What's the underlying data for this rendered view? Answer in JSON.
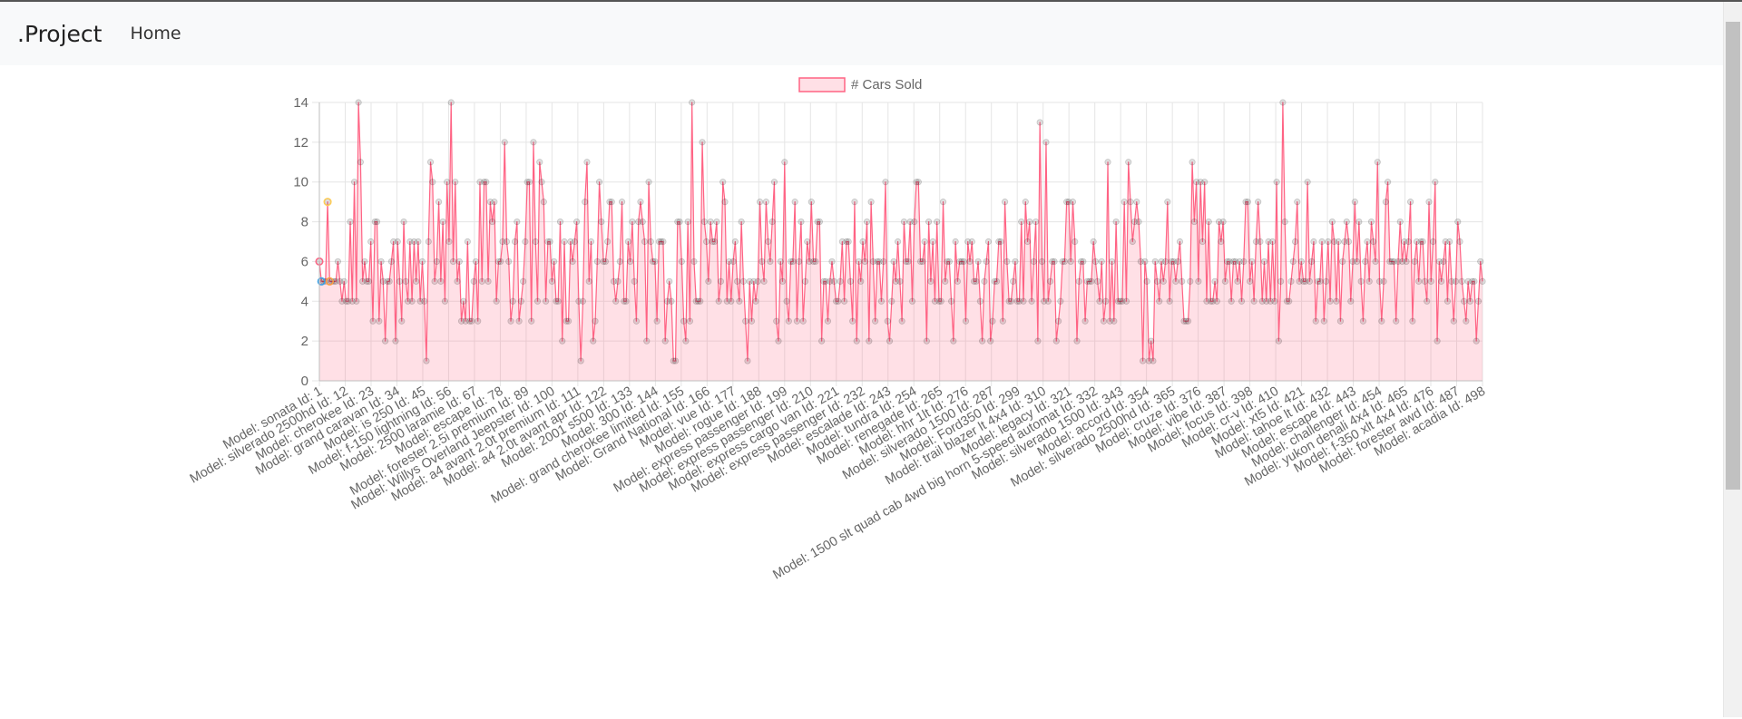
{
  "navbar": {
    "brand": ".Project",
    "links": [
      "Home"
    ]
  },
  "colors": {
    "line": "#ff6384",
    "fill": "rgba(255,99,132,0.2)",
    "grid": "#e5e5e5",
    "text": "#666666",
    "point": "rgba(0,0,0,0.12)",
    "highlightRed": "#ff6384",
    "highlightYellow": "#ffcd56",
    "highlightBlue": "#36a2eb",
    "highlightOrange": "#ff9f40"
  },
  "chart_data": {
    "type": "line",
    "legend": "# Cars Sold",
    "legend_position": "top",
    "ylim": [
      0,
      14
    ],
    "ytick_step": 2,
    "grid": true,
    "x_labels_shown": [
      "Model: sonata Id: 1",
      "Model: silverado 2500hd Id: 12",
      "Model: cherokee Id: 23",
      "Model: grand caravan Id: 34",
      "Model: is 250 Id: 45",
      "Model: f-150 lightning Id: 56",
      "Model: 2500 laramie Id: 67",
      "Model: escape Id: 78",
      "Model: forester 2.5i premium Id: 89",
      "Model: Willys Overland Jeepster Id: 100",
      "Model: a4 avant 2.0t premium Id: 111",
      "Model: a4 2.0t avant apr Id: 122",
      "Model: 2001 s500 Id: 133",
      "Model: 300 Id: 144",
      "Model: grand cherokee limited Id: 155",
      "Model: Grand National Id: 166",
      "Model: vue Id: 177",
      "Model: rogue Id: 188",
      "Model: express passenger Id: 199",
      "Model: express passenger Id: 210",
      "Model: express cargo van Id: 221",
      "Model: express passenger Id: 232",
      "Model: escalade Id: 243",
      "Model: tundra Id: 254",
      "Model: renegade Id: 265",
      "Model: hhr 1lt Id: 276",
      "Model: silverado 1500 Id: 287",
      "Model: Ford350 Id: 299",
      "Model: trail blazer lt 4x4 Id: 310",
      "Model: legacy Id: 321",
      "Model: 1500 slt quad cab 4wd big horn 5-speed automat Id: 332",
      "Model: silverado 1500 Id: 343",
      "Model: accord Id: 354",
      "Model: silverado 2500hd Id: 365",
      "Model: cruze Id: 376",
      "Model: vibe Id: 387",
      "Model: focus Id: 398",
      "Model: cr-v Id: 410",
      "Model: xt5 Id: 421",
      "Model: tahoe lt Id: 432",
      "Model: escape Id: 443",
      "Model: challenger Id: 454",
      "Model: yukon denali 4x4 Id: 465",
      "Model: f-350 xlt 4x4 Id: 476",
      "Model: forester awd Id: 487",
      "Model: acadia Id: 498"
    ],
    "values": [
      6,
      5,
      5,
      5,
      9,
      5,
      5,
      5,
      5,
      6,
      5,
      4,
      5,
      4,
      4,
      8,
      4,
      10,
      4,
      14,
      11,
      5,
      6,
      5,
      5,
      7,
      3,
      8,
      8,
      3,
      6,
      5,
      2,
      5,
      5,
      6,
      7,
      2,
      7,
      5,
      3,
      8,
      5,
      4,
      7,
      4,
      7,
      5,
      7,
      4,
      6,
      4,
      1,
      7,
      11,
      10,
      5,
      6,
      9,
      5,
      8,
      4,
      10,
      7,
      14,
      6,
      10,
      5,
      6,
      3,
      4,
      3,
      7,
      3,
      3,
      5,
      6,
      3,
      10,
      5,
      10,
      10,
      5,
      9,
      8,
      9,
      4,
      6,
      6,
      7,
      12,
      7,
      6,
      3,
      4,
      7,
      8,
      3,
      4,
      5,
      7,
      10,
      10,
      3,
      12,
      7,
      4,
      11,
      10,
      9,
      4,
      7,
      7,
      5,
      6,
      4,
      4,
      8,
      2,
      7,
      3,
      3,
      7,
      6,
      7,
      8,
      4,
      1,
      4,
      9,
      11,
      5,
      7,
      2,
      3,
      6,
      10,
      8,
      6,
      6,
      7,
      9,
      9,
      5,
      4,
      5,
      6,
      9,
      4,
      4,
      7,
      6,
      8,
      5,
      3,
      8,
      9,
      8,
      7,
      2,
      10,
      7,
      6,
      6,
      3,
      7,
      7,
      7,
      2,
      4,
      5,
      4,
      1,
      1,
      8,
      8,
      6,
      3,
      2,
      8,
      3,
      14,
      6,
      4,
      4,
      4,
      12,
      8,
      7,
      5,
      8,
      7,
      7,
      8,
      4,
      5,
      10,
      9,
      4,
      6,
      4,
      6,
      7,
      5,
      4,
      8,
      5,
      3,
      1,
      5,
      3,
      5,
      4,
      5,
      9,
      6,
      5,
      9,
      7,
      6,
      8,
      10,
      3,
      2,
      6,
      5,
      11,
      4,
      3,
      6,
      6,
      9,
      3,
      6,
      8,
      3,
      5,
      7,
      6,
      9,
      6,
      6,
      8,
      8,
      2,
      5,
      5,
      3,
      5,
      6,
      5,
      4,
      4,
      5,
      7,
      4,
      7,
      7,
      5,
      3,
      9,
      2,
      6,
      5,
      7,
      6,
      8,
      2,
      9,
      6,
      3,
      6,
      6,
      4,
      6,
      10,
      3,
      2,
      4,
      6,
      5,
      7,
      5,
      3,
      8,
      6,
      6,
      8,
      4,
      8,
      10,
      10,
      6,
      6,
      7,
      2,
      8,
      5,
      7,
      4,
      8,
      4,
      4,
      9,
      5,
      6,
      6,
      4,
      2,
      7,
      5,
      6,
      6,
      6,
      3,
      7,
      6,
      7,
      5,
      5,
      6,
      4,
      2,
      5,
      6,
      7,
      2,
      3,
      5,
      5,
      7,
      7,
      3,
      9,
      6,
      4,
      4,
      5,
      6,
      4,
      4,
      8,
      4,
      9,
      7,
      8,
      4,
      6,
      8,
      2,
      13,
      6,
      4,
      12,
      4,
      5,
      6,
      6,
      2,
      3,
      4,
      6,
      6,
      9,
      9,
      6,
      9,
      7,
      2,
      5,
      6,
      6,
      3,
      5,
      5,
      5,
      7,
      6,
      5,
      4,
      6,
      3,
      4,
      11,
      3,
      6,
      3,
      8,
      4,
      4,
      4,
      9,
      4,
      11,
      9,
      7,
      8,
      9,
      8,
      6,
      1,
      6,
      5,
      1,
      2,
      1,
      6,
      5,
      4,
      6,
      5,
      6,
      9,
      4,
      6,
      6,
      5,
      6,
      7,
      5,
      3,
      3,
      3,
      5,
      11,
      8,
      10,
      5,
      10,
      7,
      10,
      4,
      8,
      4,
      4,
      5,
      4,
      8,
      7,
      8,
      5,
      6,
      6,
      4,
      6,
      6,
      5,
      6,
      4,
      6,
      9,
      9,
      5,
      6,
      4,
      7,
      9,
      7,
      4,
      6,
      4,
      7,
      4,
      7,
      4,
      10,
      2,
      5,
      14,
      8,
      4,
      4,
      5,
      6,
      7,
      9,
      5,
      6,
      5,
      5,
      10,
      5,
      6,
      7,
      3,
      5,
      5,
      7,
      3,
      5,
      7,
      4,
      8,
      7,
      4,
      7,
      3,
      6,
      7,
      8,
      7,
      4,
      6,
      9,
      6,
      8,
      5,
      3,
      6,
      7,
      5,
      8,
      7,
      6,
      11,
      5,
      3,
      5,
      9,
      10,
      6,
      6,
      6,
      3,
      6,
      8,
      6,
      7,
      6,
      7,
      9,
      3,
      6,
      7,
      5,
      7,
      7,
      5,
      4,
      9,
      5,
      7,
      10,
      2,
      6,
      5,
      6,
      7,
      4,
      7,
      5,
      3,
      5,
      8,
      7,
      5,
      4,
      3,
      5,
      4,
      5,
      5,
      2,
      4,
      6,
      5
    ],
    "highlights": [
      {
        "index": 0,
        "value": 6,
        "color": "highlightRed"
      },
      {
        "index": 1,
        "value": 5,
        "color": "highlightBlue"
      },
      {
        "index": 4,
        "value": 9,
        "color": "highlightYellow"
      },
      {
        "index": 5,
        "value": 5,
        "color": "highlightOrange"
      }
    ]
  }
}
